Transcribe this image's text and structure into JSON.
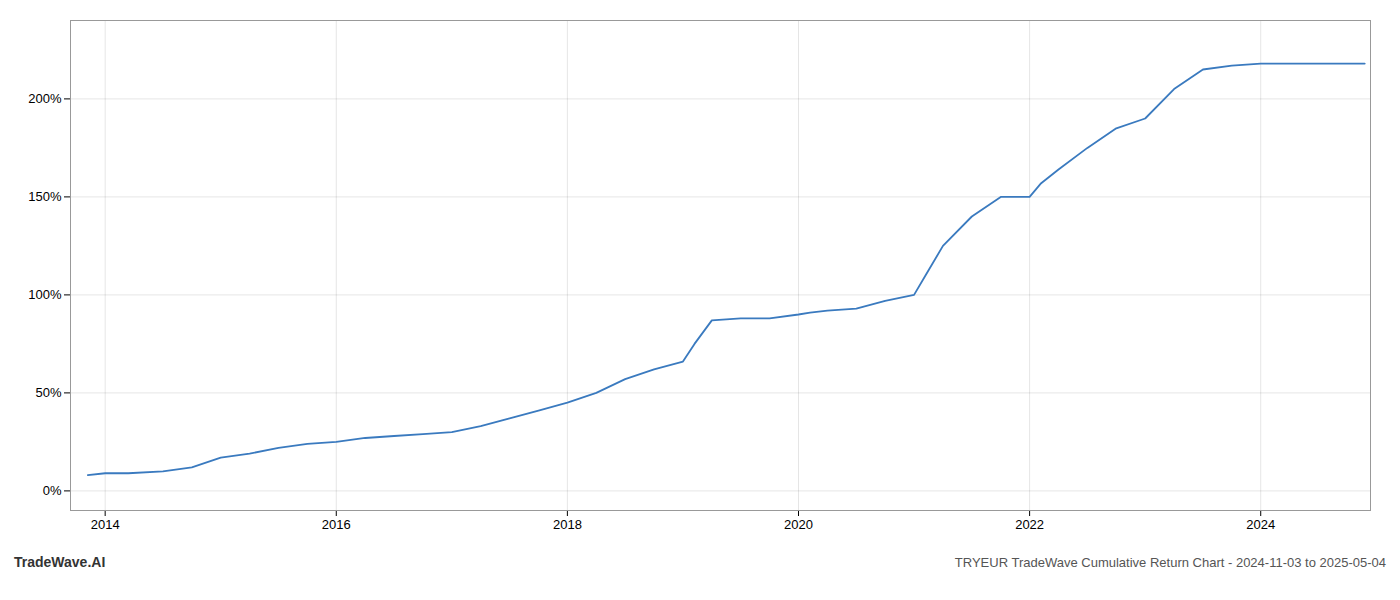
{
  "chart_data": {
    "type": "line",
    "title": "TRYEUR TradeWave Cumulative Return Chart - 2024-11-03 to 2025-05-04",
    "annotations": [
      "TradeWave.AI"
    ],
    "x": [
      2013.85,
      2014.0,
      2014.2,
      2014.5,
      2014.75,
      2015.0,
      2015.25,
      2015.5,
      2015.75,
      2016.0,
      2016.25,
      2016.5,
      2016.75,
      2017.0,
      2017.25,
      2017.5,
      2017.75,
      2018.0,
      2018.25,
      2018.5,
      2018.75,
      2019.0,
      2019.1,
      2019.25,
      2019.5,
      2019.75,
      2020.0,
      2020.1,
      2020.25,
      2020.5,
      2020.75,
      2021.0,
      2021.1,
      2021.25,
      2021.5,
      2021.75,
      2022.0,
      2022.1,
      2022.25,
      2022.5,
      2022.75,
      2023.0,
      2023.25,
      2023.5,
      2023.75,
      2024.0,
      2024.25,
      2024.5,
      2024.75,
      2024.9
    ],
    "values": [
      0.08,
      0.09,
      0.09,
      0.1,
      0.12,
      0.17,
      0.19,
      0.22,
      0.24,
      0.25,
      0.27,
      0.28,
      0.29,
      0.3,
      0.33,
      0.37,
      0.41,
      0.45,
      0.5,
      0.57,
      0.62,
      0.66,
      0.75,
      0.87,
      0.88,
      0.88,
      0.9,
      0.91,
      0.92,
      0.93,
      0.97,
      1.0,
      1.1,
      1.25,
      1.4,
      1.5,
      1.5,
      1.57,
      1.64,
      1.75,
      1.85,
      1.9,
      2.05,
      2.15,
      2.17,
      2.18,
      2.18,
      2.18,
      2.18,
      2.18
    ],
    "color": "#3a7abf",
    "xlim": [
      2013.7,
      2024.95
    ],
    "ylim": [
      -0.1,
      2.4
    ],
    "xticks": [
      2014,
      2016,
      2018,
      2020,
      2022,
      2024
    ],
    "yticks": [
      {
        "value": 0.0,
        "label": "0%"
      },
      {
        "value": 0.5,
        "label": "50%"
      },
      {
        "value": 1.0,
        "label": "100%"
      },
      {
        "value": 1.5,
        "label": "150%"
      },
      {
        "value": 2.0,
        "label": "200%"
      }
    ],
    "grid": true
  }
}
